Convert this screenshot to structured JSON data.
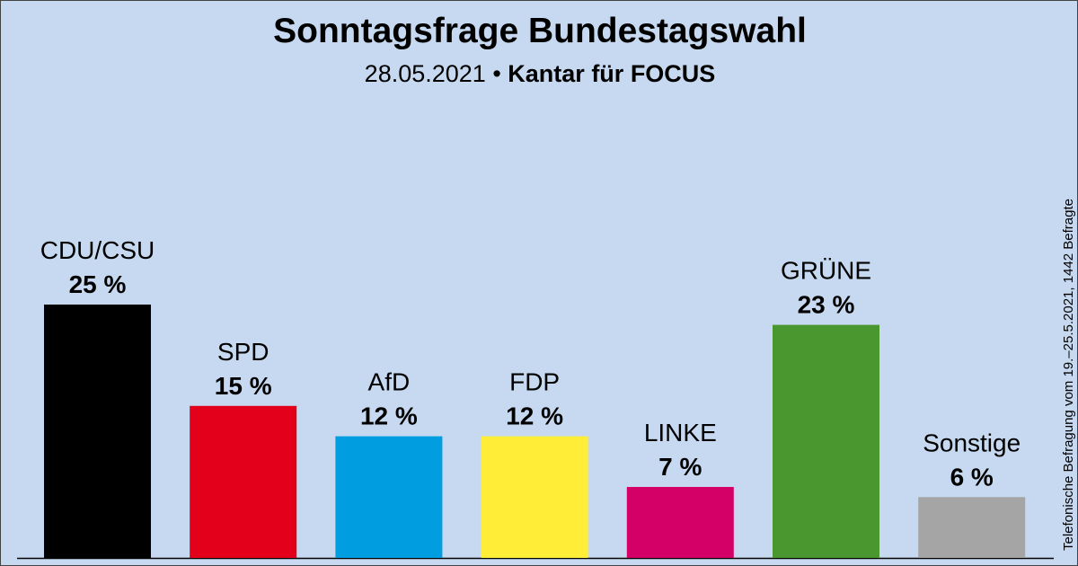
{
  "chart_data": {
    "type": "bar",
    "title": "Sonntagsfrage Bundestagswahl",
    "subtitle_date": "28.05.2021",
    "subtitle_separator": "•",
    "subtitle_source": "Kantar für FOCUS",
    "note": "Telefonische Befragung vom 19.–25.5.2021, 1442 Befragte",
    "categories": [
      "CDU/CSU",
      "SPD",
      "AfD",
      "FDP",
      "LINKE",
      "GRÜNE",
      "Sonstige"
    ],
    "values": [
      25,
      15,
      12,
      12,
      7,
      23,
      6
    ],
    "value_labels": [
      "25 %",
      "15 %",
      "12 %",
      "12 %",
      "7 %",
      "23 %",
      "6 %"
    ],
    "colors": [
      "#000000",
      "#e3001b",
      "#009ee0",
      "#ffed38",
      "#d40067",
      "#4a962f",
      "#a5a5a5"
    ],
    "ylim": [
      0,
      25
    ],
    "grid": false
  }
}
